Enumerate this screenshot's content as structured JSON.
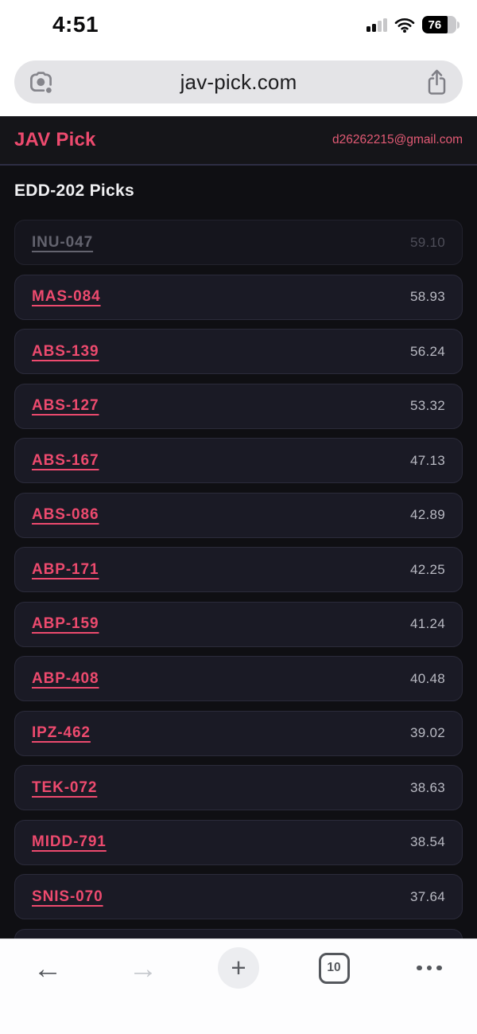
{
  "status_bar": {
    "time": "4:51",
    "signal_bars_filled": 2,
    "signal_bars_total": 4,
    "battery_percent": "76"
  },
  "browser_chrome": {
    "url_bar": {
      "url": "jav-pick.com",
      "lens_icon": "google-lens-camera",
      "share_icon": "ios-share-box-arrow"
    },
    "toolbar": {
      "back_glyph": "←",
      "forward_glyph": "→",
      "new_tab_glyph": "+",
      "tab_count": "10",
      "menu_icon": "three-dots"
    }
  },
  "page": {
    "brand": "JAV Pick",
    "account_email": "d26262215@gmail.com",
    "title": "EDD-202 Picks",
    "colors": {
      "accent": "#ed4a6e",
      "page_bg": "#0f0f13",
      "card_bg": "#1a1a25",
      "card_border": "#2b2b3a",
      "value_text": "#b9bac3"
    },
    "items": [
      {
        "code": "INU-047",
        "value": "59.10",
        "visited": true
      },
      {
        "code": "MAS-084",
        "value": "58.93",
        "visited": false
      },
      {
        "code": "ABS-139",
        "value": "56.24",
        "visited": false
      },
      {
        "code": "ABS-127",
        "value": "53.32",
        "visited": false
      },
      {
        "code": "ABS-167",
        "value": "47.13",
        "visited": false
      },
      {
        "code": "ABS-086",
        "value": "42.89",
        "visited": false
      },
      {
        "code": "ABP-171",
        "value": "42.25",
        "visited": false
      },
      {
        "code": "ABP-159",
        "value": "41.24",
        "visited": false
      },
      {
        "code": "ABP-408",
        "value": "40.48",
        "visited": false
      },
      {
        "code": "IPZ-462",
        "value": "39.02",
        "visited": false
      },
      {
        "code": "TEK-072",
        "value": "38.63",
        "visited": false
      },
      {
        "code": "MIDD-791",
        "value": "38.54",
        "visited": false
      },
      {
        "code": "SNIS-070",
        "value": "37.64",
        "visited": false
      }
    ],
    "partial_next_item_visible": true
  }
}
